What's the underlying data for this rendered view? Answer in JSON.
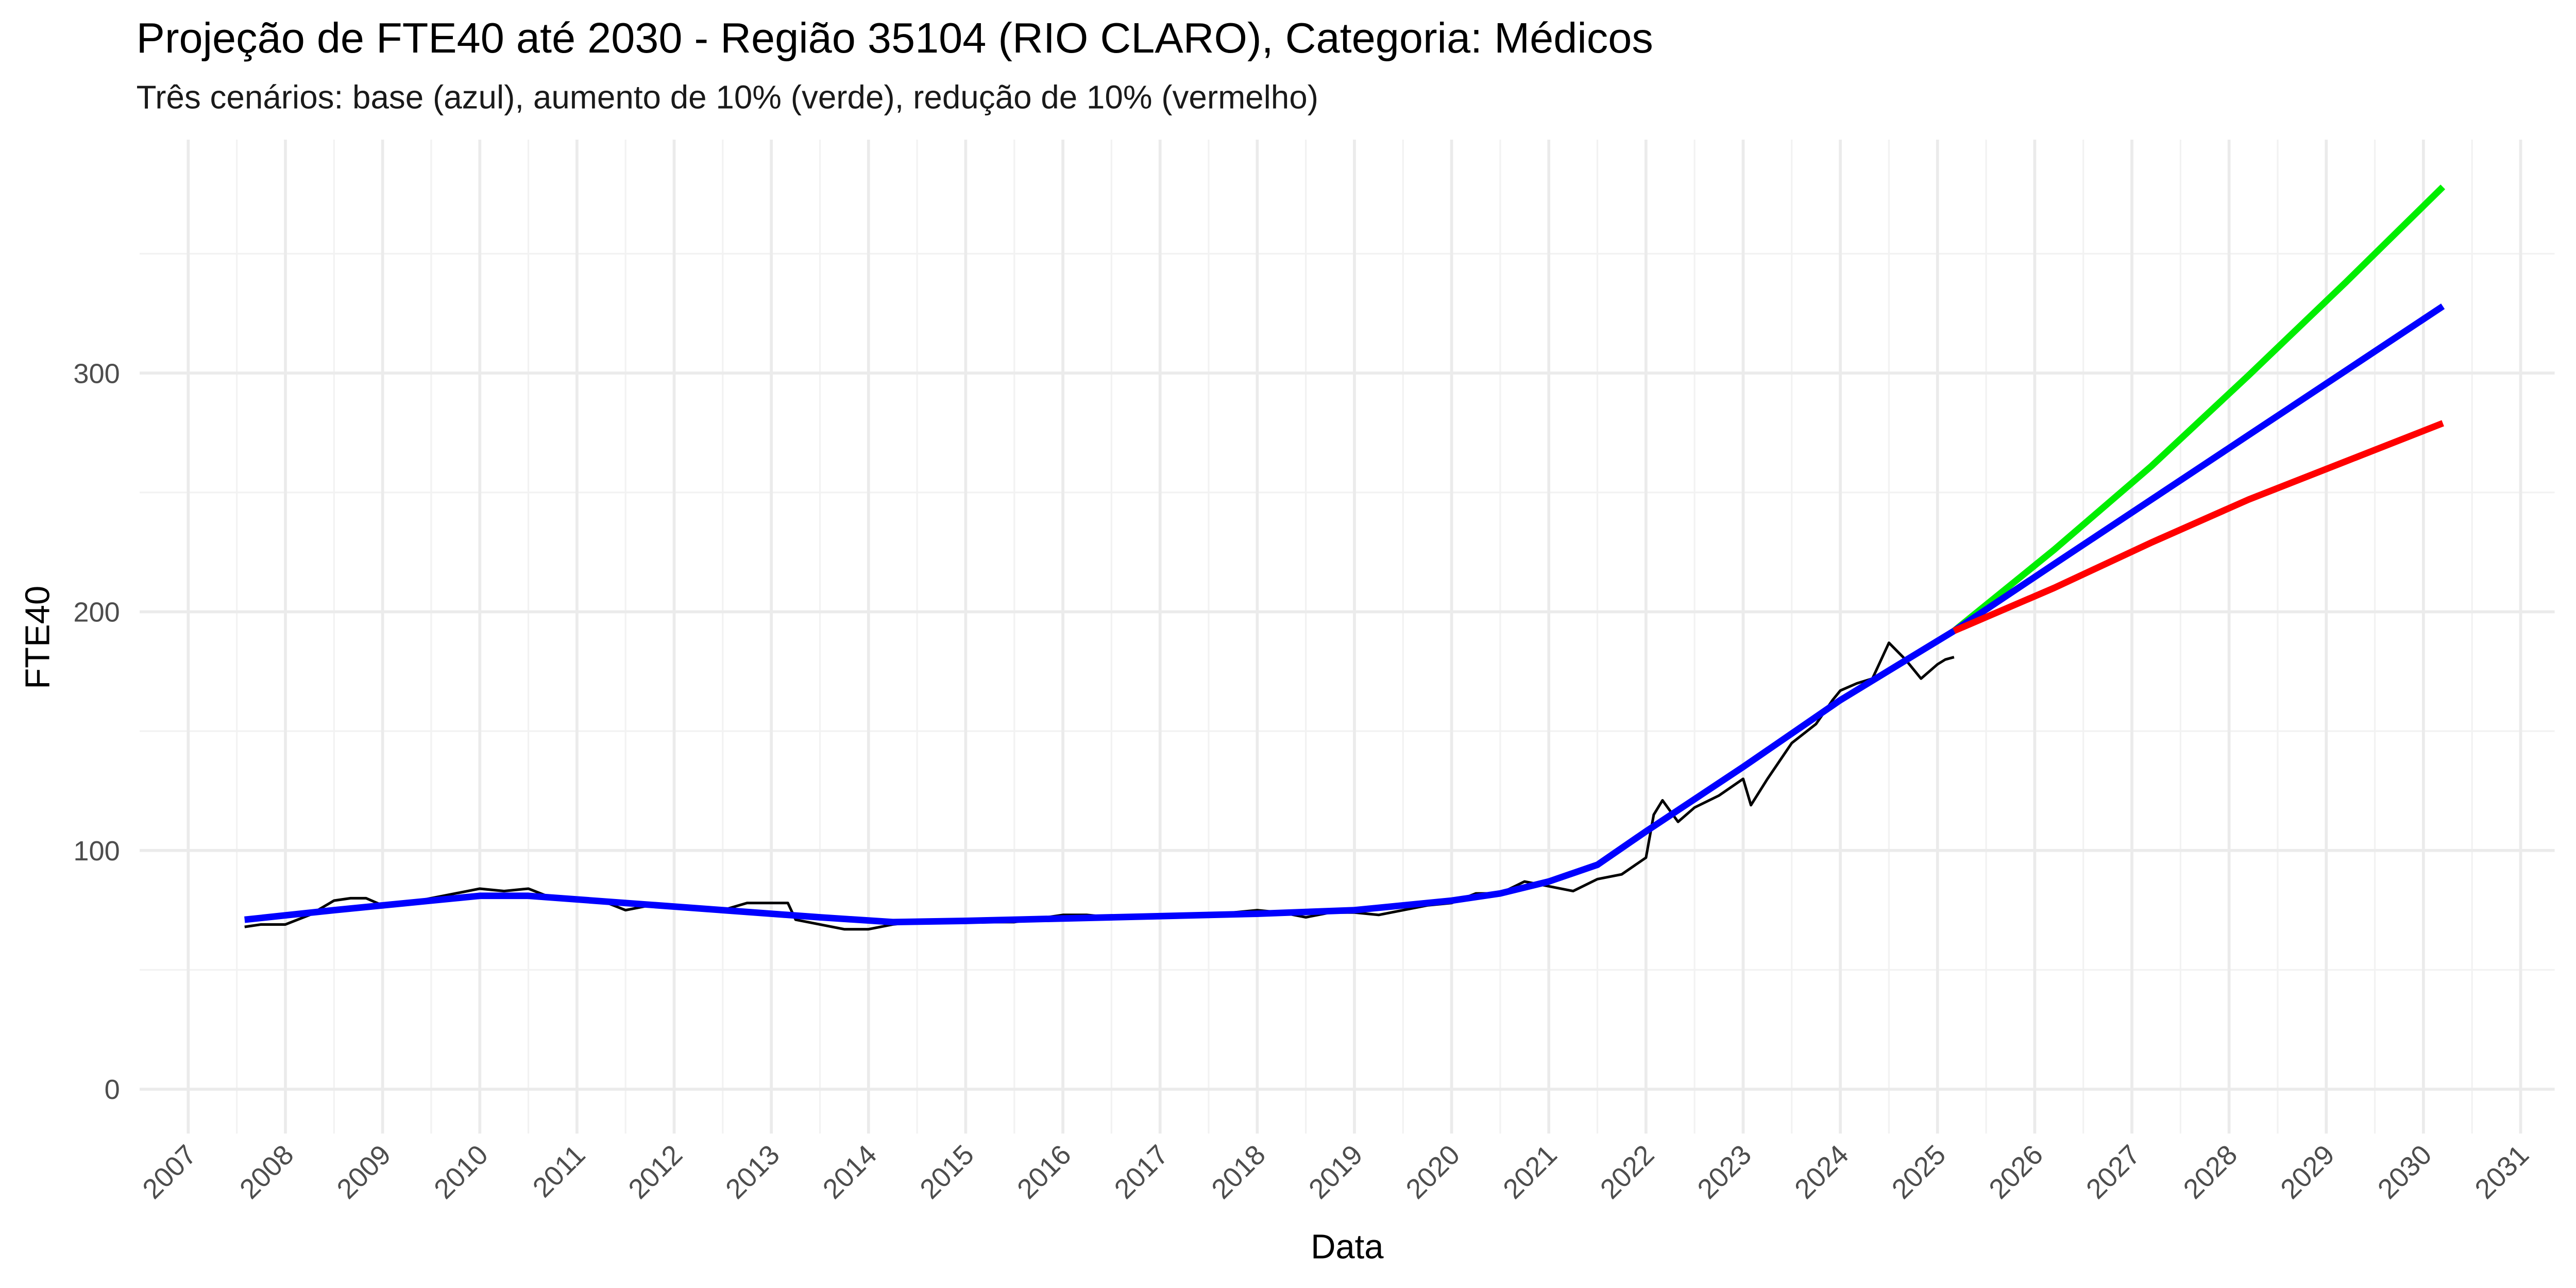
{
  "chart_data": {
    "type": "line",
    "title": "Projeção de FTE40 até 2030 - Região 35104 (RIO CLARO), Categoria: Médicos",
    "subtitle": "Três cenários: base (azul), aumento de 10% (verde), redução de 10% (vermelho)",
    "x_label": "Data",
    "y_label": "FTE40",
    "xlim": [
      2006.5,
      2031.35
    ],
    "xticks": [
      2007,
      2008,
      2009,
      2010,
      2011,
      2012,
      2013,
      2014,
      2015,
      2016,
      2017,
      2018,
      2019,
      2020,
      2021,
      2022,
      2023,
      2024,
      2025,
      2026,
      2027,
      2028,
      2029,
      2030,
      2031
    ],
    "ylim": [
      -18.6,
      397.8
    ],
    "yticks": [
      0,
      100,
      200,
      300
    ],
    "grid": true,
    "series": [
      {
        "color": "#000000",
        "width": 1.6,
        "x": [
          2007.58,
          2007.75,
          2008.0,
          2008.25,
          2008.5,
          2008.67,
          2008.83,
          2009.0,
          2009.25,
          2009.5,
          2009.75,
          2010.0,
          2010.25,
          2010.5,
          2010.75,
          2011.0,
          2011.25,
          2011.5,
          2011.75,
          2012.0,
          2012.25,
          2012.5,
          2012.75,
          2013.0,
          2013.17,
          2013.25,
          2013.5,
          2013.75,
          2014.0,
          2014.25,
          2014.5,
          2014.75,
          2015.0,
          2015.5,
          2016.0,
          2016.25,
          2016.5,
          2017.0,
          2017.5,
          2018.0,
          2018.25,
          2018.5,
          2018.75,
          2019.0,
          2019.25,
          2019.5,
          2019.75,
          2020.0,
          2020.25,
          2020.5,
          2020.75,
          2021.0,
          2021.25,
          2021.5,
          2021.75,
          2022.0,
          2022.08,
          2022.17,
          2022.33,
          2022.5,
          2022.75,
          2023.0,
          2023.08,
          2023.25,
          2023.5,
          2023.75,
          2023.92,
          2024.0,
          2024.17,
          2024.33,
          2024.5,
          2024.67,
          2024.83,
          2025.0,
          2025.08,
          2025.17
        ],
        "values": [
          68,
          69,
          69,
          73,
          79,
          80,
          80,
          77,
          78,
          80,
          82,
          84,
          83,
          84,
          80,
          79,
          79,
          75,
          77,
          77,
          76,
          75,
          78,
          78,
          78,
          71,
          69,
          67,
          67,
          69,
          70,
          71,
          70,
          70,
          73,
          73,
          72,
          72,
          73,
          75,
          74,
          72,
          74,
          74,
          73,
          75,
          77,
          78,
          82,
          82,
          87,
          85,
          83,
          88,
          90,
          97,
          115,
          121,
          112,
          118,
          123,
          130,
          119,
          130,
          145,
          153,
          163,
          167,
          170,
          172,
          187,
          180,
          172,
          178,
          180,
          181
        ]
      },
      {
        "color": "#0000ff",
        "width": 4,
        "x": [
          2007.58,
          2008.5,
          2009.5,
          2010.0,
          2010.5,
          2011.5,
          2012.5,
          2013.5,
          2014.25,
          2015.0,
          2016.0,
          2017.0,
          2018.0,
          2019.0,
          2020.0,
          2020.5,
          2021.0,
          2021.5,
          2022.0,
          2023.0,
          2024.0,
          2025.17
        ],
        "values": [
          71,
          75,
          79,
          81,
          81,
          78,
          75,
          72,
          70,
          70.5,
          71.5,
          72.5,
          73.5,
          75,
          79,
          82,
          87,
          94,
          108,
          135,
          163,
          192
        ]
      },
      {
        "color": "#00ee00",
        "width": 4,
        "x": [
          2025.17,
          2026.2,
          2027.2,
          2028.2,
          2029.2,
          2030.2
        ],
        "values": [
          192,
          226,
          261,
          299,
          338,
          378
        ]
      },
      {
        "color": "#0000ff",
        "width": 4,
        "x": [
          2025.17,
          2026.2,
          2027.2,
          2028.2,
          2029.2,
          2030.2
        ],
        "values": [
          192,
          220,
          247,
          274,
          301,
          328
        ]
      },
      {
        "color": "#ff0000",
        "width": 4,
        "x": [
          2025.17,
          2026.2,
          2027.2,
          2028.2,
          2029.2,
          2030.2
        ],
        "values": [
          192,
          210,
          229,
          247,
          263,
          279
        ]
      }
    ]
  }
}
